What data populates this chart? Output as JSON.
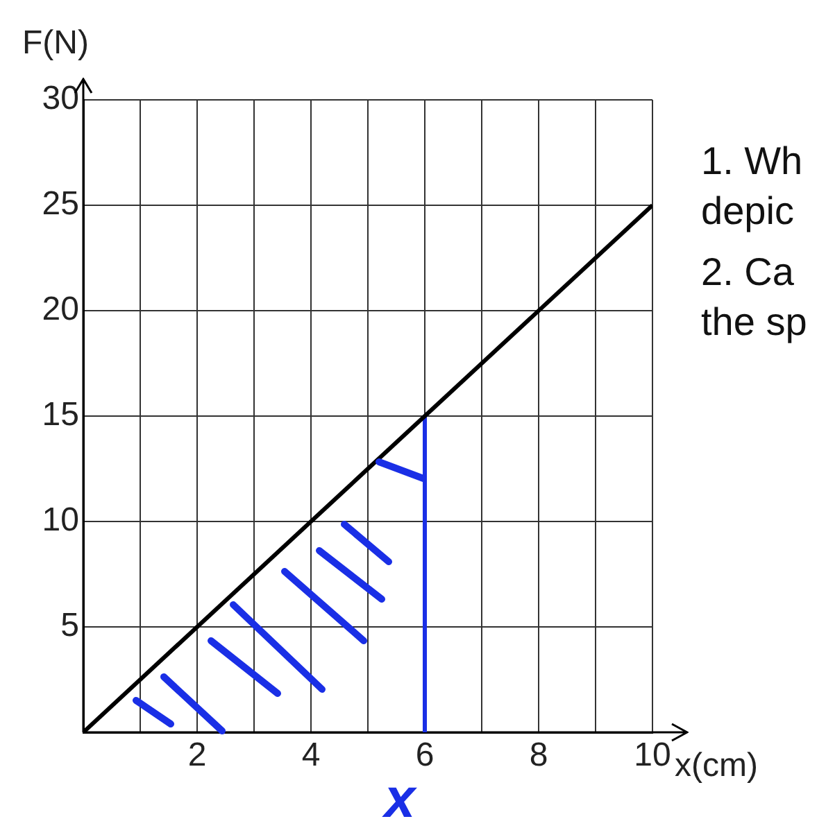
{
  "chart_data": {
    "type": "line",
    "xlabel": "x(cm)",
    "ylabel": "F(N)",
    "xlim": [
      0,
      10
    ],
    "ylim": [
      0,
      30
    ],
    "xticks": [
      {
        "value": 1,
        "label": null
      },
      2,
      {
        "value": 3,
        "label": null
      },
      4,
      {
        "value": 5,
        "label": null
      },
      6,
      {
        "value": 7,
        "label": null
      },
      8,
      {
        "value": 9,
        "label": null
      },
      10
    ],
    "yticks": [
      5,
      10,
      15,
      20,
      25,
      30
    ],
    "series": [
      {
        "color": "#000000",
        "x": [
          0,
          10
        ],
        "values": [
          0,
          25
        ]
      },
      {
        "color": "#1a2fe6",
        "x": [
          6,
          6
        ],
        "values": [
          0,
          15
        ]
      }
    ],
    "annotations": [
      "1. Wh",
      "depic",
      "2. Ca",
      "the sp",
      "x"
    ],
    "grid": true,
    "marker": "none",
    "line_style": "solid"
  }
}
